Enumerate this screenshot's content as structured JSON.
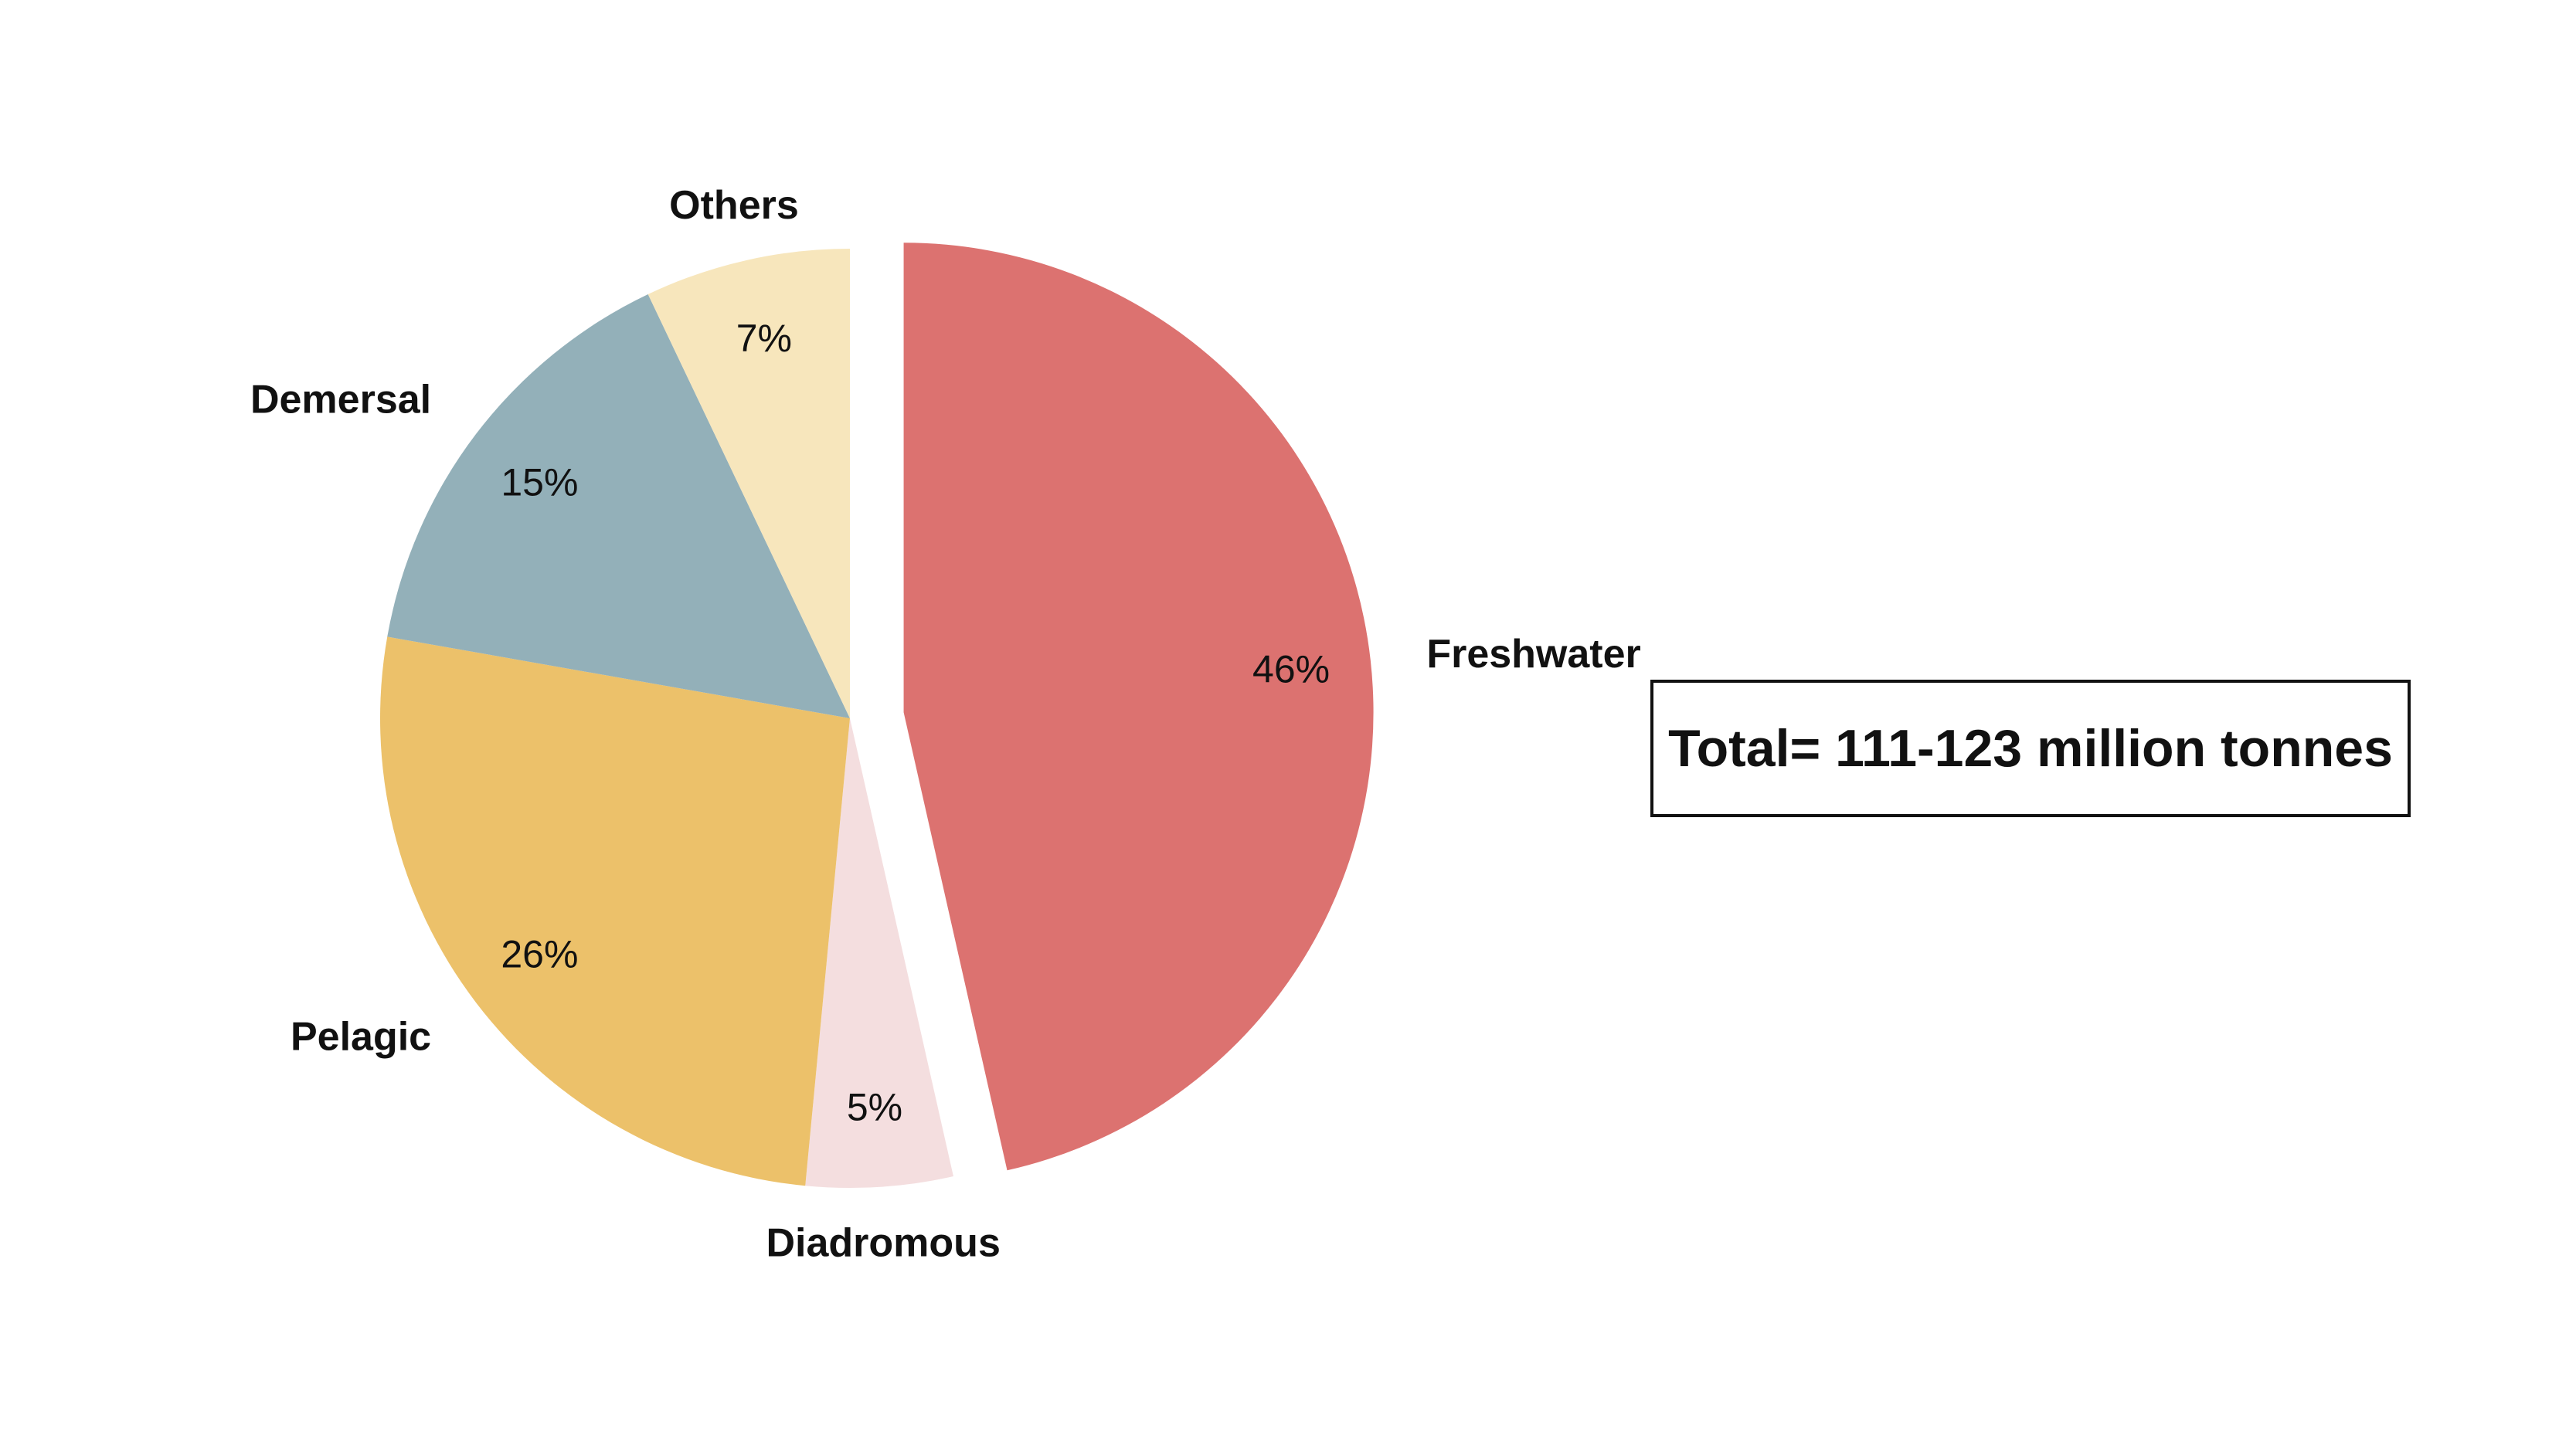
{
  "chart_data": {
    "type": "pie",
    "title": "",
    "unit": "%",
    "start": "12 o'clock",
    "direction": "clockwise",
    "exploded_slice": "Freshwater",
    "slices": [
      {
        "label": "Freshwater",
        "value": 46,
        "value_label": "46%",
        "color": "#DC7270"
      },
      {
        "label": "Diadromous",
        "value": 5,
        "value_label": "5%",
        "color": "#F4DEDF"
      },
      {
        "label": "Pelagic",
        "value": 26,
        "value_label": "26%",
        "color": "#ECC16A"
      },
      {
        "label": "Demersal",
        "value": 15,
        "value_label": "15%",
        "color": "#93B0B9"
      },
      {
        "label": "Others",
        "value": 7,
        "value_label": "7%",
        "color": "#F7E6BC"
      }
    ]
  },
  "annotation": {
    "total_text": "Total= 111-123 million tonnes"
  }
}
